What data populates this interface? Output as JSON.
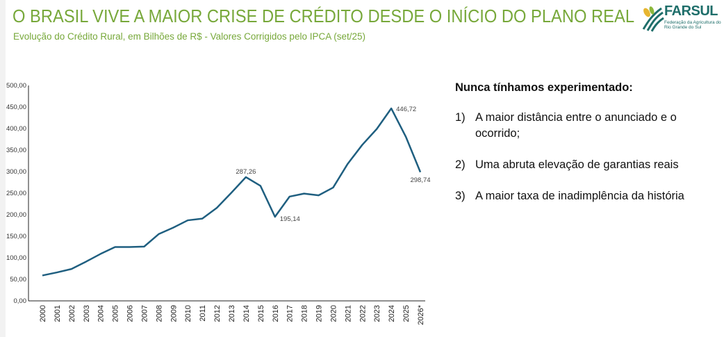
{
  "header": {
    "title": "O BRASIL VIVE A MAIOR CRISE DE CRÉDITO DESDE O INÍCIO DO PLANO REAL",
    "subtitle": "Evolução do Crédito Rural, em Bilhões de R$ - Valores Corrigidos pelo IPCA (set/25)",
    "logo": {
      "brand": "FARSUL",
      "tagline": "Federação da Agricultura do Rio Grande do Sul"
    }
  },
  "chart_data": {
    "type": "line",
    "title": "Evolução do Crédito Rural, em Bilhões de R$ - Valores Corrigidos pelo IPCA (set/25)",
    "xlabel": "",
    "ylabel": "",
    "ylim": [
      0,
      500
    ],
    "yticks": [
      "0,00",
      "50,00",
      "100,00",
      "150,00",
      "200,00",
      "250,00",
      "300,00",
      "350,00",
      "400,00",
      "450,00",
      "500,00"
    ],
    "categories": [
      "2000",
      "2001",
      "2002",
      "2003",
      "2004",
      "2005",
      "2006",
      "2007",
      "2008",
      "2009",
      "2010",
      "2011",
      "2012",
      "2013",
      "2014",
      "2015",
      "2016",
      "2017",
      "2018",
      "2019",
      "2020",
      "2021",
      "2022",
      "2023",
      "2024",
      "2025",
      "2026*"
    ],
    "series": [
      {
        "name": "Crédito Rural",
        "color": "#1f5f80",
        "values": [
          59,
          66,
          74,
          91,
          109,
          125,
          125,
          126,
          155,
          170,
          187,
          191,
          216,
          251,
          287.26,
          267,
          195.14,
          242,
          249,
          245,
          263,
          318,
          362,
          399,
          446.72,
          381,
          298.74
        ]
      }
    ],
    "data_labels": [
      {
        "index": 14,
        "text": "287,26"
      },
      {
        "index": 16,
        "text": "195,14"
      },
      {
        "index": 24,
        "text": "446,72"
      },
      {
        "index": 26,
        "text": "298,74"
      }
    ],
    "grid": false,
    "legend": "none"
  },
  "notes": {
    "heading": "Nunca tínhamos experimentado:",
    "items": [
      {
        "num": "1)",
        "text": "A maior distância entre o anunciado e o ocorrido;"
      },
      {
        "num": "2)",
        "text": "Uma abruta elevação de garantias reais"
      },
      {
        "num": "3)",
        "text": "A maior taxa de inadimplência da história"
      }
    ]
  }
}
